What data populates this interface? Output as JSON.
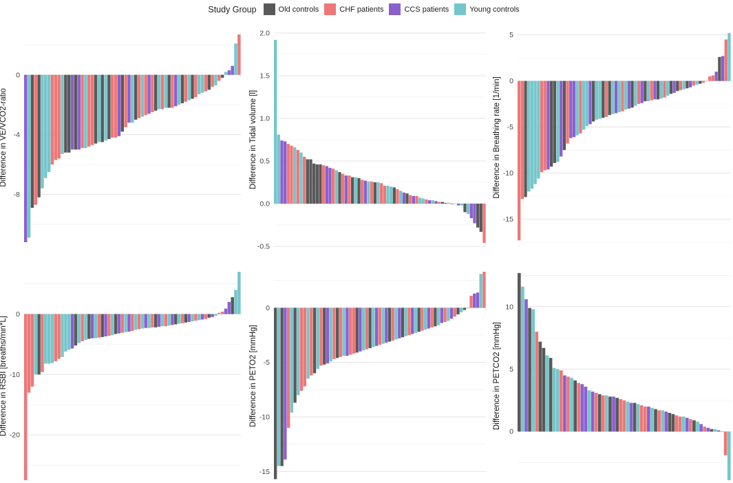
{
  "legend": {
    "title": "Study Group",
    "items": [
      {
        "label": "Old controls",
        "color": "#595959"
      },
      {
        "label": "CHF patients",
        "color": "#ee7777"
      },
      {
        "label": "CCS patients",
        "color": "#8a60d1"
      },
      {
        "label": "Young controls",
        "color": "#75c6cb"
      }
    ]
  },
  "chart_data": [
    {
      "type": "bar",
      "id": "ve_vco2",
      "ylabel": "Difference in VE/VCO2-ratio",
      "ylim": [
        -11.2,
        2.8
      ],
      "yticks": [
        0,
        -4,
        -8
      ],
      "values": [
        -11.2,
        -10.9,
        -8.9,
        -8.7,
        -8.2,
        -7.6,
        -6.9,
        -6.5,
        -6.0,
        -5.7,
        -5.6,
        -5.3,
        -5.2,
        -5.2,
        -5.0,
        -5.0,
        -5.0,
        -4.9,
        -4.9,
        -4.8,
        -4.7,
        -4.6,
        -4.5,
        -4.5,
        -4.4,
        -4.3,
        -4.2,
        -4.2,
        -4.1,
        -3.8,
        -3.5,
        -3.2,
        -3.2,
        -3.0,
        -2.9,
        -2.8,
        -2.7,
        -2.6,
        -2.5,
        -2.4,
        -2.3,
        -2.3,
        -2.2,
        -2.2,
        -2.2,
        -2.1,
        -2.0,
        -1.9,
        -1.8,
        -1.7,
        -1.6,
        -1.5,
        -1.3,
        -1.2,
        -1.1,
        -1.0,
        -0.8,
        -0.7,
        -0.4,
        -0.2,
        0.2,
        0.3,
        0.6,
        2.1,
        2.7
      ],
      "groups": [
        2,
        3,
        0,
        1,
        0,
        3,
        3,
        3,
        1,
        1,
        1,
        3,
        0,
        0,
        2,
        0,
        2,
        1,
        3,
        1,
        1,
        0,
        3,
        0,
        3,
        0,
        1,
        1,
        2,
        0,
        1,
        2,
        3,
        0,
        1,
        3,
        1,
        2,
        1,
        0,
        3,
        1,
        3,
        0,
        1,
        2,
        3,
        0,
        1,
        3,
        0,
        1,
        3,
        3,
        1,
        0,
        1,
        3,
        1,
        0,
        3,
        2,
        2,
        3,
        1
      ]
    },
    {
      "type": "bar",
      "id": "tidal",
      "ylabel": "Difference in Tidal volume [l]",
      "ylim": [
        -0.5,
        2.0
      ],
      "yticks": [
        2.0,
        1.5,
        1.0,
        0.5,
        0.0,
        -0.5
      ],
      "values": [
        1.92,
        0.81,
        0.74,
        0.73,
        0.7,
        0.68,
        0.66,
        0.63,
        0.6,
        0.55,
        0.52,
        0.52,
        0.47,
        0.46,
        0.46,
        0.45,
        0.44,
        0.42,
        0.41,
        0.39,
        0.37,
        0.35,
        0.33,
        0.33,
        0.31,
        0.31,
        0.3,
        0.28,
        0.27,
        0.26,
        0.26,
        0.25,
        0.25,
        0.24,
        0.21,
        0.21,
        0.2,
        0.19,
        0.17,
        0.15,
        0.13,
        0.12,
        0.1,
        0.09,
        0.09,
        0.07,
        0.06,
        0.05,
        0.04,
        0.04,
        0.03,
        0.02,
        0.02,
        0.01,
        0.01,
        0.0,
        0.0,
        -0.02,
        -0.02,
        -0.1,
        -0.12,
        -0.17,
        -0.23,
        -0.28,
        -0.33,
        -0.46
      ],
      "groups": [
        3,
        3,
        2,
        2,
        1,
        1,
        3,
        1,
        3,
        1,
        0,
        0,
        0,
        0,
        0,
        1,
        2,
        2,
        1,
        3,
        0,
        1,
        2,
        1,
        0,
        3,
        0,
        1,
        2,
        3,
        1,
        0,
        3,
        1,
        1,
        3,
        3,
        0,
        1,
        3,
        2,
        0,
        1,
        2,
        1,
        3,
        3,
        1,
        2,
        3,
        2,
        1,
        0,
        2,
        3,
        0,
        3,
        2,
        3,
        0,
        3,
        2,
        2,
        0,
        0,
        1
      ]
    },
    {
      "type": "bar",
      "id": "brate",
      "ylabel": "Difference in Breathing rate [1/min]",
      "ylim": [
        -17.5,
        5.2
      ],
      "yticks": [
        5,
        0,
        -5,
        -10,
        -15
      ],
      "values": [
        -17.3,
        -12.8,
        -12.6,
        -12.0,
        -11.7,
        -11.2,
        -10.6,
        -9.9,
        -9.7,
        -9.6,
        -9.3,
        -8.9,
        -8.8,
        -8.2,
        -7.5,
        -6.8,
        -6.2,
        -6.1,
        -5.9,
        -5.7,
        -5.3,
        -4.9,
        -4.7,
        -4.4,
        -4.2,
        -4.1,
        -4.0,
        -3.9,
        -3.7,
        -3.6,
        -3.5,
        -3.4,
        -3.3,
        -3.1,
        -3.0,
        -2.9,
        -2.7,
        -2.5,
        -2.4,
        -2.2,
        -2.2,
        -2.1,
        -2.0,
        -2.0,
        -1.9,
        -1.8,
        -1.6,
        -1.4,
        -1.3,
        -1.1,
        -1.0,
        -0.9,
        -0.8,
        -0.7,
        -0.5,
        -0.4,
        -0.3,
        -0.2,
        0.0,
        0.5,
        0.6,
        1.0,
        2.6,
        2.7,
        4.5,
        5.2
      ],
      "groups": [
        1,
        1,
        0,
        3,
        3,
        3,
        3,
        1,
        1,
        2,
        0,
        0,
        3,
        2,
        0,
        1,
        2,
        2,
        3,
        1,
        3,
        3,
        2,
        0,
        3,
        3,
        0,
        1,
        0,
        3,
        2,
        3,
        1,
        3,
        2,
        0,
        3,
        1,
        2,
        0,
        3,
        1,
        2,
        0,
        3,
        1,
        3,
        0,
        2,
        0,
        1,
        3,
        0,
        2,
        1,
        3,
        0,
        1,
        3,
        1,
        1,
        2,
        0,
        2,
        1,
        3
      ]
    },
    {
      "type": "bar",
      "id": "rsbi",
      "ylabel": "Difference in RSBI [breaths/min*L]",
      "ylim": [
        -27.5,
        7.0
      ],
      "yticks": [
        0,
        -10,
        -20
      ],
      "values": [
        -27.5,
        -13.0,
        -12.0,
        -10.0,
        -10.0,
        -9.6,
        -8.2,
        -8.2,
        -8.1,
        -7.8,
        -7.4,
        -7.1,
        -6.2,
        -5.9,
        -5.7,
        -5.2,
        -4.8,
        -4.5,
        -4.3,
        -4.1,
        -4.0,
        -4.0,
        -3.9,
        -3.8,
        -3.7,
        -3.6,
        -3.5,
        -3.3,
        -3.2,
        -3.1,
        -3.0,
        -2.9,
        -2.8,
        -2.6,
        -2.5,
        -2.4,
        -2.3,
        -2.3,
        -2.2,
        -2.2,
        -2.1,
        -2.0,
        -2.0,
        -1.9,
        -1.8,
        -1.7,
        -1.6,
        -1.5,
        -1.4,
        -1.3,
        -1.2,
        -1.1,
        -1.0,
        -0.9,
        -0.8,
        -0.6,
        -0.5,
        -0.3,
        0.2,
        0.4,
        0.9,
        2.0,
        2.8,
        4.0,
        7.0
      ],
      "groups": [
        1,
        1,
        1,
        3,
        0,
        1,
        3,
        3,
        3,
        1,
        1,
        3,
        3,
        3,
        2,
        0,
        3,
        1,
        3,
        0,
        2,
        3,
        1,
        0,
        2,
        1,
        3,
        0,
        2,
        1,
        3,
        2,
        1,
        3,
        1,
        3,
        2,
        3,
        1,
        0,
        2,
        3,
        1,
        3,
        2,
        0,
        3,
        1,
        0,
        2,
        3,
        1,
        3,
        2,
        1,
        0,
        2,
        3,
        1,
        1,
        2,
        2,
        0,
        3,
        3
      ]
    },
    {
      "type": "bar",
      "id": "peto2",
      "ylabel": "Difference in PETO2 [mmHg]",
      "ylim": [
        -15.8,
        3.3
      ],
      "yticks": [
        0,
        -5,
        -10,
        -15
      ],
      "values": [
        -15.7,
        -14.5,
        -14.5,
        -13.9,
        -11.0,
        -9.6,
        -8.7,
        -8.0,
        -7.6,
        -7.2,
        -6.5,
        -6.2,
        -6.0,
        -5.6,
        -5.3,
        -5.2,
        -5.1,
        -4.9,
        -4.7,
        -4.6,
        -4.5,
        -4.4,
        -4.4,
        -4.3,
        -4.2,
        -4.1,
        -4.0,
        -3.9,
        -3.8,
        -3.7,
        -3.6,
        -3.5,
        -3.4,
        -3.3,
        -3.2,
        -3.1,
        -3.0,
        -2.9,
        -2.8,
        -2.7,
        -2.6,
        -2.5,
        -2.4,
        -2.3,
        -2.2,
        -2.1,
        -2.0,
        -1.9,
        -1.8,
        -1.7,
        -1.6,
        -1.4,
        -1.3,
        -1.2,
        -1.0,
        -0.8,
        -0.6,
        -0.4,
        -0.2,
        0.0,
        1.1,
        1.3,
        1.4,
        3.1,
        3.3
      ],
      "groups": [
        0,
        3,
        0,
        2,
        1,
        3,
        0,
        3,
        1,
        1,
        3,
        1,
        0,
        3,
        1,
        0,
        2,
        3,
        1,
        0,
        1,
        3,
        2,
        1,
        1,
        0,
        2,
        3,
        1,
        0,
        3,
        2,
        1,
        3,
        2,
        0,
        1,
        3,
        2,
        0,
        3,
        1,
        2,
        3,
        0,
        1,
        3,
        2,
        1,
        0,
        3,
        2,
        1,
        3,
        2,
        1,
        0,
        3,
        0,
        1,
        1,
        2,
        2,
        3,
        1
      ]
    },
    {
      "type": "bar",
      "id": "petco2",
      "ylabel": "Difference in PETCO2 [mmHg]",
      "ylim": [
        -3.9,
        12.8
      ],
      "yticks": [
        10,
        5,
        0
      ],
      "values": [
        12.7,
        11.6,
        10.6,
        9.9,
        9.8,
        8.0,
        7.2,
        6.7,
        6.1,
        5.9,
        5.1,
        5.0,
        4.9,
        4.5,
        4.4,
        4.3,
        4.1,
        3.9,
        3.8,
        3.6,
        3.3,
        3.2,
        3.1,
        3.0,
        2.9,
        2.9,
        2.8,
        2.8,
        2.7,
        2.6,
        2.5,
        2.4,
        2.3,
        2.3,
        2.2,
        2.1,
        2.0,
        2.0,
        1.9,
        1.8,
        1.7,
        1.7,
        1.6,
        1.5,
        1.4,
        1.3,
        1.2,
        1.2,
        1.1,
        1.0,
        0.9,
        0.8,
        0.6,
        0.4,
        0.3,
        0.2,
        0.2,
        0.1,
        0.0,
        -1.9,
        -3.9
      ],
      "groups": [
        0,
        3,
        2,
        0,
        3,
        1,
        0,
        0,
        3,
        0,
        3,
        3,
        1,
        2,
        1,
        3,
        0,
        1,
        2,
        2,
        3,
        2,
        1,
        0,
        1,
        3,
        0,
        2,
        0,
        1,
        1,
        3,
        2,
        0,
        3,
        1,
        1,
        2,
        3,
        0,
        1,
        3,
        2,
        0,
        0,
        1,
        1,
        3,
        2,
        1,
        0,
        3,
        2,
        1,
        2,
        0,
        3,
        2,
        1,
        1,
        3
      ]
    }
  ]
}
